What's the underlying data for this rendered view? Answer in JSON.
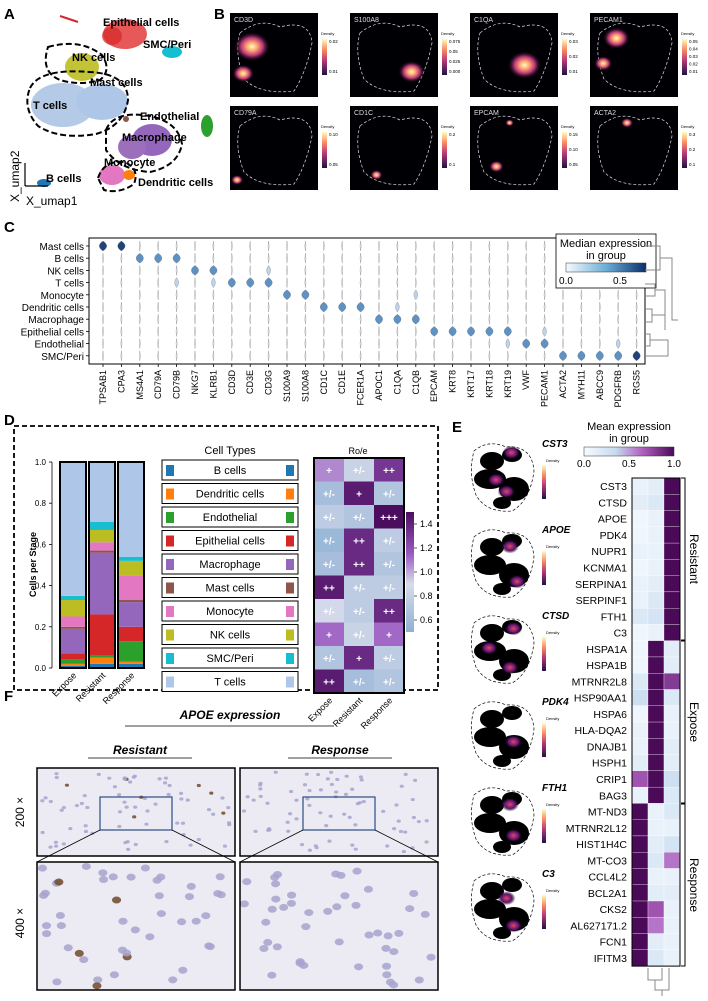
{
  "panels": {
    "A": {
      "letter": "A",
      "x_axis": "X_umap1",
      "y_axis": "X_umap2",
      "clusters": [
        "Epithelial cells",
        "SMC/Peri",
        "NK cells",
        "Mast cells",
        "T cells",
        "Endothelial",
        "Macrophage",
        "Monocyte",
        "Dendritic cells",
        "B cells"
      ]
    },
    "B": {
      "letter": "B",
      "legend_word": "Density",
      "genes": [
        "CD3D",
        "S100A8",
        "C1QA",
        "PECAM1",
        "CD79A",
        "CD1C",
        "EPCAM",
        "ACTA2"
      ],
      "scales": [
        [
          "0.02",
          "0.01"
        ],
        [
          "0.075",
          "0.05",
          "0.025",
          "0.000"
        ],
        [
          "0.03",
          "0.02",
          "0.01"
        ],
        [
          "0.05",
          "0.04",
          "0.03",
          "0.02",
          "0.01"
        ],
        [
          "0.10",
          "0.05"
        ],
        [
          "0.2",
          "0.1"
        ],
        [
          "0.15",
          "0.10",
          "0.05"
        ],
        [
          "0.3",
          "0.2",
          "0.1"
        ]
      ]
    },
    "C": {
      "letter": "C",
      "row_labels": [
        "Mast cells",
        "B cells",
        "NK cells",
        "T cells",
        "Monocyte",
        "Dendritic cells",
        "Macrophage",
        "Epithelial cells",
        "Endothelial",
        "SMC/Peri"
      ],
      "col_labels": [
        "TPSAB1",
        "CPA3",
        "MS4A1",
        "CD79A",
        "CD79B",
        "NKG7",
        "KLRB1",
        "CD3D",
        "CD3E",
        "CD3G",
        "S100A9",
        "S100A8",
        "CD1C",
        "CD1E",
        "FCER1A",
        "APOC1",
        "C1QA",
        "C1QB",
        "EPCAM",
        "KRT8",
        "KRT17",
        "KRT18",
        "KRT19",
        "VWF",
        "PECAM1",
        "ACTA2",
        "MYH11",
        "ABCC9",
        "PDGFRB",
        "RGS5"
      ],
      "legend_title_1": "Median expression",
      "legend_title_2": "in group",
      "legend_min": "0.0",
      "legend_max": "0.5"
    },
    "D": {
      "letter": "D",
      "y_label": "Cells per Stage",
      "y_ticks": [
        "0.0",
        "0.2",
        "0.4",
        "0.6",
        "0.8",
        "1.0"
      ],
      "stages": [
        "Expose",
        "Resistant",
        "Response"
      ],
      "legend_title": "Cell Types",
      "cell_types": [
        "B cells",
        "Dendritic cells",
        "Endothelial",
        "Epithelial cells",
        "Macrophage",
        "Mast cells",
        "Monocyte",
        "NK cells",
        "SMC/Peri",
        "T cells"
      ],
      "colors": {
        "B cells": "#1f77b4",
        "Dendritic cells": "#ff7f0e",
        "Endothelial": "#2ca02c",
        "Epithelial cells": "#d62728",
        "Macrophage": "#9467bd",
        "Mast cells": "#8c564b",
        "Monocyte": "#e377c2",
        "NK cells": "#bcbd22",
        "SMC/Peri": "#17becf",
        "T cells": "#aec7e8"
      },
      "roe_title": "Ro/e",
      "roe_ticks": [
        "1.4",
        "1.2",
        "1.0",
        "0.8",
        "0.6"
      ]
    },
    "E": {
      "letter": "E",
      "legend_title_1": "Mean expression",
      "legend_title_2": "in group",
      "legend_ticks": [
        "0.0",
        "0.5",
        "1.0"
      ],
      "umap_genes": [
        "CST3",
        "APOE",
        "CTSD",
        "PDK4",
        "FTH1",
        "C3"
      ],
      "density_word": "Density",
      "group_labels": [
        "Resistant",
        "Expose",
        "Response"
      ]
    },
    "F": {
      "letter": "F",
      "title": "APOE expression",
      "col_resistant": "Resistant",
      "col_response": "Response",
      "mag_200": "200 ×",
      "mag_400": "400 ×"
    }
  },
  "chart_data": [
    {
      "type": "bar",
      "title": "",
      "ylabel": "Cells per Stage",
      "categories": [
        "Expose",
        "Resistant",
        "Response"
      ],
      "ylim": [
        0,
        1
      ],
      "stacked": true,
      "series": [
        {
          "name": "B cells",
          "values": [
            0.01,
            0.02,
            0.02
          ]
        },
        {
          "name": "Dendritic cells",
          "values": [
            0.01,
            0.03,
            0.01
          ]
        },
        {
          "name": "Endothelial",
          "values": [
            0.02,
            0.01,
            0.1
          ]
        },
        {
          "name": "Epithelial cells",
          "values": [
            0.03,
            0.2,
            0.07
          ]
        },
        {
          "name": "Macrophage",
          "values": [
            0.12,
            0.3,
            0.12
          ]
        },
        {
          "name": "Mast cells",
          "values": [
            0.01,
            0.01,
            0.01
          ]
        },
        {
          "name": "Monocyte",
          "values": [
            0.05,
            0.04,
            0.12
          ]
        },
        {
          "name": "NK cells",
          "values": [
            0.08,
            0.06,
            0.07
          ]
        },
        {
          "name": "SMC/Peri",
          "values": [
            0.02,
            0.04,
            0.02
          ]
        },
        {
          "name": "T cells",
          "values": [
            0.65,
            0.29,
            0.46
          ]
        }
      ]
    },
    {
      "type": "heatmap",
      "title": "Ro/e",
      "rows": [
        "B cells",
        "Dendritic cells",
        "Endothelial",
        "Epithelial cells",
        "Macrophage",
        "Mast cells",
        "Monocyte",
        "NK cells",
        "SMC/Peri",
        "T cells"
      ],
      "columns": [
        "Expose",
        "Resistant",
        "Response"
      ],
      "labels": [
        [
          "+",
          "+/-",
          "++"
        ],
        [
          "+/-",
          "+",
          "+/-"
        ],
        [
          "+/-",
          "+/-",
          "+++"
        ],
        [
          "+/-",
          "++",
          "+/-"
        ],
        [
          "+/-",
          "++",
          "+/-"
        ],
        [
          "++",
          "+/-",
          "+/-"
        ],
        [
          "+/-",
          "+/-",
          "++"
        ],
        [
          "+",
          "+/-",
          "+"
        ],
        [
          "+/-",
          "+",
          "+/-"
        ],
        [
          "++",
          "+/-",
          "+/-"
        ]
      ],
      "values": [
        [
          1.05,
          0.85,
          1.25
        ],
        [
          0.7,
          1.35,
          0.75
        ],
        [
          0.8,
          0.75,
          1.5
        ],
        [
          0.65,
          1.3,
          0.8
        ],
        [
          0.7,
          1.3,
          0.75
        ],
        [
          1.35,
          0.8,
          0.8
        ],
        [
          0.9,
          0.8,
          1.3
        ],
        [
          1.1,
          0.85,
          1.1
        ],
        [
          0.75,
          1.3,
          0.8
        ],
        [
          1.35,
          0.7,
          0.75
        ]
      ],
      "range": [
        0.6,
        1.4
      ]
    },
    {
      "type": "heatmap",
      "title": "",
      "rows": [
        "CST3",
        "CTSD",
        "APOE",
        "PDK4",
        "NUPR1",
        "KCNMA1",
        "SERPINA1",
        "SERPINF1",
        "FTH1",
        "C3",
        "HSPA1A",
        "HSPA1B",
        "MTRNR2L8",
        "HSP90AA1",
        "HSPA6",
        "HLA-DQA2",
        "DNAJB1",
        "HSPH1",
        "CRIP1",
        "BAG3",
        "MT-ND3",
        "MTRNR2L12",
        "HIST1H4C",
        "MT-CO3",
        "CCL4L2",
        "BCL2A1",
        "CKS2",
        "AL627171.2",
        "FCN1",
        "IFITM3"
      ],
      "columns": [
        "Expose",
        "Resistant",
        "Response"
      ],
      "values": [
        [
          0.1,
          0.15,
          1.0
        ],
        [
          0.15,
          0.2,
          1.0
        ],
        [
          0.05,
          0.1,
          1.0
        ],
        [
          0.05,
          0.1,
          1.0
        ],
        [
          0.1,
          0.1,
          1.0
        ],
        [
          0.05,
          0.1,
          1.0
        ],
        [
          0.1,
          0.15,
          1.0
        ],
        [
          0.1,
          0.2,
          1.0
        ],
        [
          0.2,
          0.25,
          1.0
        ],
        [
          0.05,
          0.1,
          1.0
        ],
        [
          0.05,
          1.0,
          0.15
        ],
        [
          0.05,
          1.0,
          0.15
        ],
        [
          0.2,
          1.0,
          0.8
        ],
        [
          0.3,
          1.0,
          0.2
        ],
        [
          0.05,
          1.0,
          0.1
        ],
        [
          0.1,
          1.0,
          0.1
        ],
        [
          0.1,
          1.0,
          0.15
        ],
        [
          0.15,
          1.0,
          0.15
        ],
        [
          0.7,
          1.0,
          0.3
        ],
        [
          0.1,
          1.0,
          0.2
        ],
        [
          1.0,
          0.1,
          0.2
        ],
        [
          1.0,
          0.1,
          0.1
        ],
        [
          1.0,
          0.15,
          0.25
        ],
        [
          1.0,
          0.2,
          0.6
        ],
        [
          1.0,
          0.1,
          0.1
        ],
        [
          1.0,
          0.15,
          0.15
        ],
        [
          1.0,
          0.7,
          0.1
        ],
        [
          1.0,
          0.6,
          0.1
        ],
        [
          1.0,
          0.15,
          0.1
        ],
        [
          1.0,
          0.2,
          0.1
        ]
      ],
      "range": [
        0,
        1
      ]
    }
  ]
}
